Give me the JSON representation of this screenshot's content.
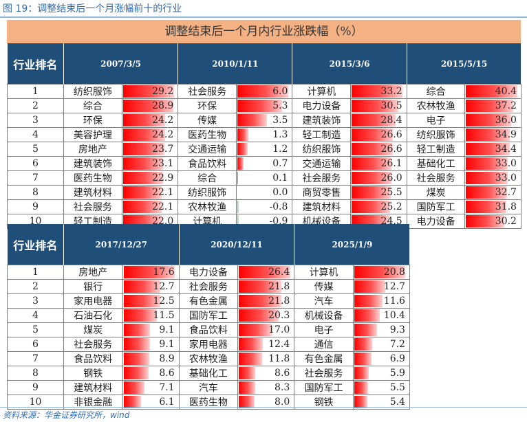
{
  "figure_title": "图 19：调整结束后一个月涨幅前十的行业",
  "banner": "调整结束后一个月内行业涨跌幅（%）",
  "rank_header": "行业排名",
  "ranks": [
    "1",
    "2",
    "3",
    "4",
    "5",
    "6",
    "7",
    "8",
    "9",
    "10"
  ],
  "colors": {
    "header_bg": "#1f4e79",
    "banner_bg": "#f4b183",
    "positive_bar": "#ff0000",
    "negative_bar": "#63be7b"
  },
  "tables": [
    {
      "periods": [
        {
          "date": "2007/3/5",
          "rows": [
            [
              "纺织服饰",
              "29.2"
            ],
            [
              "综合",
              "28.9"
            ],
            [
              "环保",
              "24.2"
            ],
            [
              "美容护理",
              "24.2"
            ],
            [
              "房地产",
              "23.7"
            ],
            [
              "建筑装饰",
              "23.1"
            ],
            [
              "医药生物",
              "22.9"
            ],
            [
              "建筑材料",
              "22.1"
            ],
            [
              "社会服务",
              "22.1"
            ],
            [
              "轻工制造",
              "22.0"
            ]
          ]
        },
        {
          "date": "2010/1/11",
          "rows": [
            [
              "社会服务",
              "6.0"
            ],
            [
              "环保",
              "5.3"
            ],
            [
              "传媒",
              "3.5"
            ],
            [
              "医药生物",
              "1.3"
            ],
            [
              "交通运输",
              "1.2"
            ],
            [
              "食品饮料",
              "0.7"
            ],
            [
              "综合",
              "0.1"
            ],
            [
              "纺织服饰",
              "0.0"
            ],
            [
              "农林牧渔",
              "-0.8"
            ],
            [
              "计算机",
              "-0.9"
            ]
          ]
        },
        {
          "date": "2015/3/6",
          "rows": [
            [
              "计算机",
              "33.2"
            ],
            [
              "电力设备",
              "30.5"
            ],
            [
              "建筑装饰",
              "28.4"
            ],
            [
              "轻工制造",
              "26.6"
            ],
            [
              "纺织服饰",
              "26.6"
            ],
            [
              "交通运输",
              "26.1"
            ],
            [
              "社会服务",
              "26.0"
            ],
            [
              "商贸零售",
              "25.5"
            ],
            [
              "建筑材料",
              "25.2"
            ],
            [
              "机械设备",
              "24.5"
            ]
          ]
        },
        {
          "date": "2015/5/15",
          "rows": [
            [
              "综合",
              "40.4"
            ],
            [
              "农林牧渔",
              "37.2"
            ],
            [
              "电子",
              "36.0"
            ],
            [
              "纺织服饰",
              "34.9"
            ],
            [
              "轻工制造",
              "34.4"
            ],
            [
              "基础化工",
              "33.0"
            ],
            [
              "社会服务",
              "33.0"
            ],
            [
              "煤炭",
              "32.7"
            ],
            [
              "国防军工",
              "31.8"
            ],
            [
              "电力设备",
              "30.2"
            ]
          ]
        }
      ]
    },
    {
      "periods": [
        {
          "date": "2017/12/27",
          "rows": [
            [
              "房地产",
              "17.6"
            ],
            [
              "银行",
              "12.7"
            ],
            [
              "家用电器",
              "12.5"
            ],
            [
              "石油石化",
              "11.5"
            ],
            [
              "煤炭",
              "9.1"
            ],
            [
              "社会服务",
              "9.1"
            ],
            [
              "食品饮料",
              "8.9"
            ],
            [
              "钢铁",
              "8.6"
            ],
            [
              "建筑材料",
              "7.1"
            ],
            [
              "非银金融",
              "6.1"
            ]
          ]
        },
        {
          "date": "2020/12/11",
          "rows": [
            [
              "电力设备",
              "26.4"
            ],
            [
              "社会服务",
              "21.8"
            ],
            [
              "有色金属",
              "21.8"
            ],
            [
              "国防军工",
              "20.3"
            ],
            [
              "食品饮料",
              "17.0"
            ],
            [
              "家用电器",
              "12.4"
            ],
            [
              "农林牧渔",
              "11.8"
            ],
            [
              "基础化工",
              "8.6"
            ],
            [
              "汽车",
              "8.3"
            ],
            [
              "医药生物",
              "8.0"
            ]
          ]
        },
        {
          "date": "2025/1/9",
          "rows": [
            [
              "计算机",
              "20.8"
            ],
            [
              "传媒",
              "12.7"
            ],
            [
              "汽车",
              "11.6"
            ],
            [
              "机械设备",
              "10.4"
            ],
            [
              "电子",
              "9.3"
            ],
            [
              "通信",
              "7.2"
            ],
            [
              "有色金属",
              "6.9"
            ],
            [
              "社会服务",
              "5.9"
            ],
            [
              "国防军工",
              "5.5"
            ],
            [
              "钢铁",
              "5.4"
            ]
          ]
        }
      ]
    }
  ],
  "source": "资料来源：华金证券研究所，wind"
}
